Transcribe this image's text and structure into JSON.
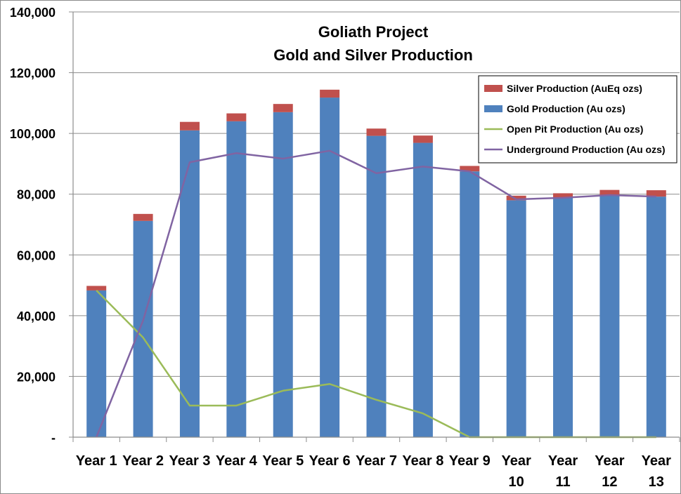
{
  "chart_data": {
    "type": "bar",
    "title": "Goliath Project",
    "subtitle": "Gold and Silver Production",
    "categories": [
      "Year 1",
      "Year 2",
      "Year 3",
      "Year 4",
      "Year 5",
      "Year 6",
      "Year 7",
      "Year 8",
      "Year 9",
      "Year 10",
      "Year 11",
      "Year 12",
      "Year 13"
    ],
    "category_lines": [
      [
        "Year 1"
      ],
      [
        "Year 2"
      ],
      [
        "Year 3"
      ],
      [
        "Year 4"
      ],
      [
        "Year 5"
      ],
      [
        "Year 6"
      ],
      [
        "Year 7"
      ],
      [
        "Year 8"
      ],
      [
        "Year 9"
      ],
      [
        "Year",
        "10"
      ],
      [
        "Year",
        "11"
      ],
      [
        "Year",
        "12"
      ],
      [
        "Year",
        "13"
      ]
    ],
    "stacked": true,
    "series": [
      {
        "name": "Silver Production (AuEq ozs)",
        "kind": "bar",
        "color": "#c0504d",
        "values": [
          1500,
          2300,
          2800,
          2600,
          2700,
          2600,
          2400,
          2400,
          1800,
          1500,
          1500,
          1700,
          2100
        ]
      },
      {
        "name": "Gold Production (Au ozs)",
        "kind": "bar",
        "color": "#4f81bd",
        "values": [
          48300,
          71200,
          101000,
          104000,
          107000,
          111800,
          99200,
          96900,
          87500,
          78000,
          78800,
          79700,
          79200
        ]
      },
      {
        "name": "Open Pit Production (Au ozs)",
        "kind": "line",
        "color": "#9bbb59",
        "values": [
          48300,
          32800,
          10400,
          10400,
          15300,
          17500,
          12300,
          7800,
          0,
          0,
          0,
          0,
          0
        ]
      },
      {
        "name": "Underground Production (Au ozs)",
        "kind": "line",
        "color": "#8064a2",
        "values": [
          0,
          38400,
          90500,
          93500,
          91700,
          94300,
          86900,
          89100,
          87500,
          78300,
          78800,
          79700,
          79200
        ]
      }
    ],
    "legend_order": [
      0,
      1,
      2,
      3
    ],
    "ylim": [
      0,
      140000
    ],
    "yticks": [
      0,
      20000,
      40000,
      60000,
      80000,
      100000,
      120000,
      140000
    ],
    "ytick_labels": [
      "-",
      "20,000",
      "40,000",
      "60,000",
      "80,000",
      "100,000",
      "120,000",
      "140,000"
    ],
    "grid": true,
    "legend_position": "top-right"
  }
}
